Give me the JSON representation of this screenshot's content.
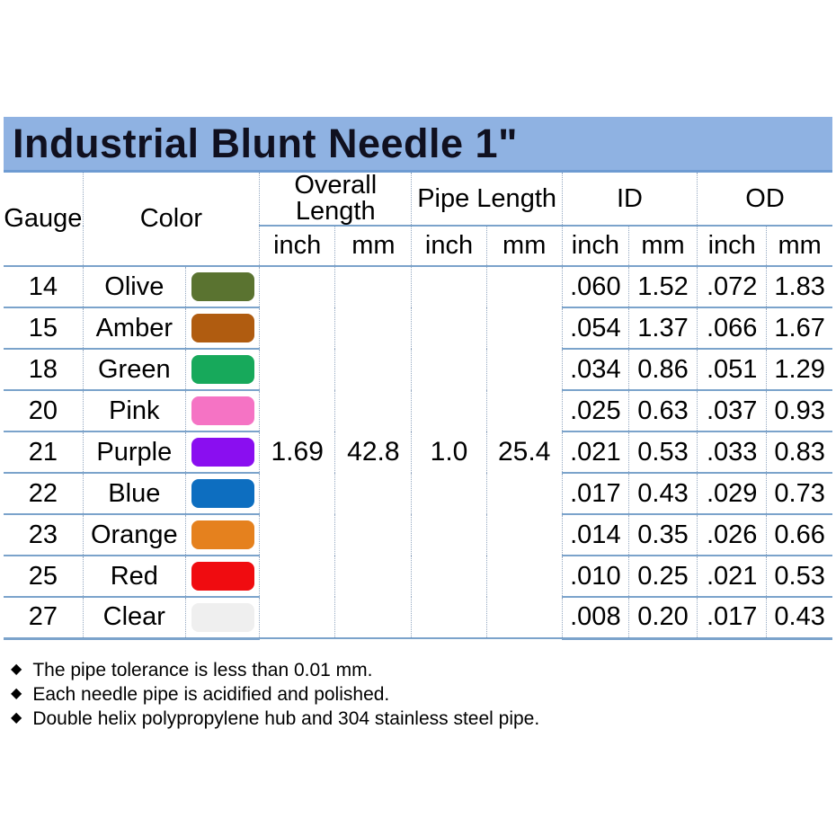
{
  "title": "Industrial Blunt Needle 1\"",
  "colors": {
    "title_bar_bg": "#8fb2e2",
    "title_bar_edge": "#6e9bd2",
    "grid_solid_line": "#7ba3cb",
    "grid_dotted_line": "#93a7c0"
  },
  "table": {
    "headers": {
      "gauge": "Gauge",
      "color": "Color",
      "overall_length": "Overall Length",
      "pipe_length": "Pipe Length",
      "id": "ID",
      "od": "OD",
      "inch": "inch",
      "mm": "mm"
    },
    "shared": {
      "overall_length_inch": "1.69",
      "overall_length_mm": "42.8",
      "pipe_length_inch": "1.0",
      "pipe_length_mm": "25.4"
    },
    "rows": [
      {
        "gauge": "14",
        "color": "Olive",
        "swatch_color": "#5a7330",
        "id_inch": ".060",
        "id_mm": "1.52",
        "od_inch": ".072",
        "od_mm": "1.83"
      },
      {
        "gauge": "15",
        "color": "Amber",
        "swatch_color": "#b05c10",
        "id_inch": ".054",
        "id_mm": "1.37",
        "od_inch": ".066",
        "od_mm": "1.67"
      },
      {
        "gauge": "18",
        "color": "Green",
        "swatch_color": "#17a95b",
        "id_inch": ".034",
        "id_mm": "0.86",
        "od_inch": ".051",
        "od_mm": "1.29"
      },
      {
        "gauge": "20",
        "color": "Pink",
        "swatch_color": "#f573c4",
        "id_inch": ".025",
        "id_mm": "0.63",
        "od_inch": ".037",
        "od_mm": "0.93"
      },
      {
        "gauge": "21",
        "color": "Purple",
        "swatch_color": "#8a0ef0",
        "id_inch": ".021",
        "id_mm": "0.53",
        "od_inch": ".033",
        "od_mm": "0.83"
      },
      {
        "gauge": "22",
        "color": "Blue",
        "swatch_color": "#0d6ec0",
        "id_inch": ".017",
        "id_mm": "0.43",
        "od_inch": ".029",
        "od_mm": "0.73"
      },
      {
        "gauge": "23",
        "color": "Orange",
        "swatch_color": "#e5811e",
        "id_inch": ".014",
        "id_mm": "0.35",
        "od_inch": ".026",
        "od_mm": "0.66"
      },
      {
        "gauge": "25",
        "color": "Red",
        "swatch_color": "#f00c10",
        "id_inch": ".010",
        "id_mm": "0.25",
        "od_inch": ".021",
        "od_mm": "0.53"
      },
      {
        "gauge": "27",
        "color": "Clear",
        "swatch_color": "#efefef",
        "id_inch": ".008",
        "id_mm": "0.20",
        "od_inch": ".017",
        "od_mm": "0.43"
      }
    ]
  },
  "notes": {
    "bullet": "◆",
    "items": [
      "The pipe tolerance is less than 0.01 mm.",
      "Each needle pipe is acidified and polished.",
      "Double helix polypropylene hub and 304 stainless steel pipe."
    ]
  }
}
